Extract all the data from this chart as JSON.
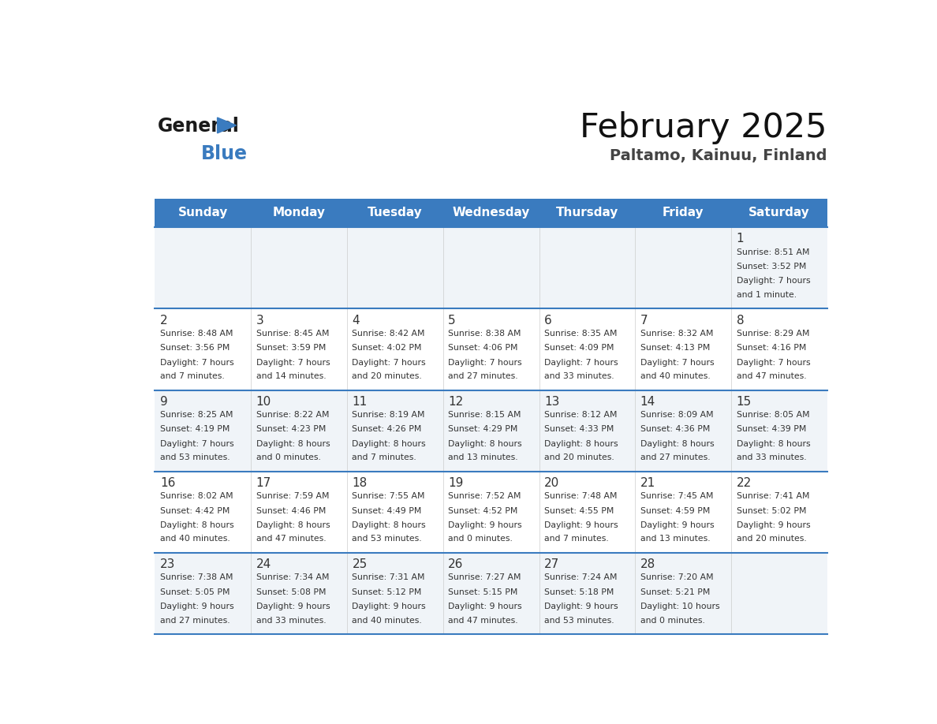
{
  "title": "February 2025",
  "subtitle": "Paltamo, Kainuu, Finland",
  "header_bg": "#3a7bbf",
  "header_text_color": "#ffffff",
  "day_names": [
    "Sunday",
    "Monday",
    "Tuesday",
    "Wednesday",
    "Thursday",
    "Friday",
    "Saturday"
  ],
  "day_number_color": "#333333",
  "cell_text_color": "#333333",
  "divider_color": "#3a7bbf",
  "background_color": "#ffffff",
  "days": [
    {
      "day": 1,
      "col": 6,
      "row": 0,
      "sunrise": "8:51 AM",
      "sunset": "3:52 PM",
      "daylight": "7 hours and 1 minute."
    },
    {
      "day": 2,
      "col": 0,
      "row": 1,
      "sunrise": "8:48 AM",
      "sunset": "3:56 PM",
      "daylight": "7 hours and 7 minutes."
    },
    {
      "day": 3,
      "col": 1,
      "row": 1,
      "sunrise": "8:45 AM",
      "sunset": "3:59 PM",
      "daylight": "7 hours and 14 minutes."
    },
    {
      "day": 4,
      "col": 2,
      "row": 1,
      "sunrise": "8:42 AM",
      "sunset": "4:02 PM",
      "daylight": "7 hours and 20 minutes."
    },
    {
      "day": 5,
      "col": 3,
      "row": 1,
      "sunrise": "8:38 AM",
      "sunset": "4:06 PM",
      "daylight": "7 hours and 27 minutes."
    },
    {
      "day": 6,
      "col": 4,
      "row": 1,
      "sunrise": "8:35 AM",
      "sunset": "4:09 PM",
      "daylight": "7 hours and 33 minutes."
    },
    {
      "day": 7,
      "col": 5,
      "row": 1,
      "sunrise": "8:32 AM",
      "sunset": "4:13 PM",
      "daylight": "7 hours and 40 minutes."
    },
    {
      "day": 8,
      "col": 6,
      "row": 1,
      "sunrise": "8:29 AM",
      "sunset": "4:16 PM",
      "daylight": "7 hours and 47 minutes."
    },
    {
      "day": 9,
      "col": 0,
      "row": 2,
      "sunrise": "8:25 AM",
      "sunset": "4:19 PM",
      "daylight": "7 hours and 53 minutes."
    },
    {
      "day": 10,
      "col": 1,
      "row": 2,
      "sunrise": "8:22 AM",
      "sunset": "4:23 PM",
      "daylight": "8 hours and 0 minutes."
    },
    {
      "day": 11,
      "col": 2,
      "row": 2,
      "sunrise": "8:19 AM",
      "sunset": "4:26 PM",
      "daylight": "8 hours and 7 minutes."
    },
    {
      "day": 12,
      "col": 3,
      "row": 2,
      "sunrise": "8:15 AM",
      "sunset": "4:29 PM",
      "daylight": "8 hours and 13 minutes."
    },
    {
      "day": 13,
      "col": 4,
      "row": 2,
      "sunrise": "8:12 AM",
      "sunset": "4:33 PM",
      "daylight": "8 hours and 20 minutes."
    },
    {
      "day": 14,
      "col": 5,
      "row": 2,
      "sunrise": "8:09 AM",
      "sunset": "4:36 PM",
      "daylight": "8 hours and 27 minutes."
    },
    {
      "day": 15,
      "col": 6,
      "row": 2,
      "sunrise": "8:05 AM",
      "sunset": "4:39 PM",
      "daylight": "8 hours and 33 minutes."
    },
    {
      "day": 16,
      "col": 0,
      "row": 3,
      "sunrise": "8:02 AM",
      "sunset": "4:42 PM",
      "daylight": "8 hours and 40 minutes."
    },
    {
      "day": 17,
      "col": 1,
      "row": 3,
      "sunrise": "7:59 AM",
      "sunset": "4:46 PM",
      "daylight": "8 hours and 47 minutes."
    },
    {
      "day": 18,
      "col": 2,
      "row": 3,
      "sunrise": "7:55 AM",
      "sunset": "4:49 PM",
      "daylight": "8 hours and 53 minutes."
    },
    {
      "day": 19,
      "col": 3,
      "row": 3,
      "sunrise": "7:52 AM",
      "sunset": "4:52 PM",
      "daylight": "9 hours and 0 minutes."
    },
    {
      "day": 20,
      "col": 4,
      "row": 3,
      "sunrise": "7:48 AM",
      "sunset": "4:55 PM",
      "daylight": "9 hours and 7 minutes."
    },
    {
      "day": 21,
      "col": 5,
      "row": 3,
      "sunrise": "7:45 AM",
      "sunset": "4:59 PM",
      "daylight": "9 hours and 13 minutes."
    },
    {
      "day": 22,
      "col": 6,
      "row": 3,
      "sunrise": "7:41 AM",
      "sunset": "5:02 PM",
      "daylight": "9 hours and 20 minutes."
    },
    {
      "day": 23,
      "col": 0,
      "row": 4,
      "sunrise": "7:38 AM",
      "sunset": "5:05 PM",
      "daylight": "9 hours and 27 minutes."
    },
    {
      "day": 24,
      "col": 1,
      "row": 4,
      "sunrise": "7:34 AM",
      "sunset": "5:08 PM",
      "daylight": "9 hours and 33 minutes."
    },
    {
      "day": 25,
      "col": 2,
      "row": 4,
      "sunrise": "7:31 AM",
      "sunset": "5:12 PM",
      "daylight": "9 hours and 40 minutes."
    },
    {
      "day": 26,
      "col": 3,
      "row": 4,
      "sunrise": "7:27 AM",
      "sunset": "5:15 PM",
      "daylight": "9 hours and 47 minutes."
    },
    {
      "day": 27,
      "col": 4,
      "row": 4,
      "sunrise": "7:24 AM",
      "sunset": "5:18 PM",
      "daylight": "9 hours and 53 minutes."
    },
    {
      "day": 28,
      "col": 5,
      "row": 4,
      "sunrise": "7:20 AM",
      "sunset": "5:21 PM",
      "daylight": "10 hours and 0 minutes."
    }
  ]
}
